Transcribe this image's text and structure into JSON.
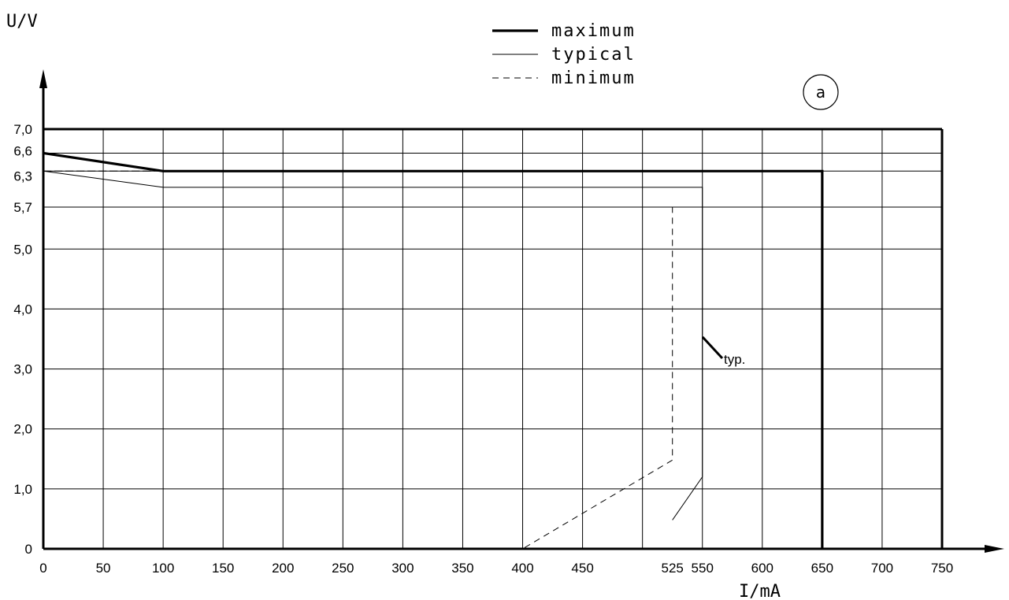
{
  "chart_data": {
    "type": "line",
    "xlabel": "I/mA",
    "ylabel": "U/V",
    "xlim": [
      0,
      750
    ],
    "ylim": [
      0,
      7.0
    ],
    "x_ticks": [
      0,
      50,
      100,
      150,
      200,
      250,
      300,
      350,
      400,
      450,
      525,
      550,
      600,
      650,
      700,
      750
    ],
    "x_tick_labels": [
      "0",
      "50",
      "100",
      "150",
      "200",
      "250",
      "300",
      "350",
      "400",
      "450",
      "525",
      "550",
      "600",
      "650",
      "700",
      "750"
    ],
    "y_ticks": [
      0,
      1.0,
      2.0,
      3.0,
      4.0,
      5.0,
      5.7,
      6.3,
      6.6,
      7.0
    ],
    "y_tick_labels": [
      "0",
      "1,0",
      "2,0",
      "3,0",
      "4,0",
      "5,0",
      "5,7",
      "6,3",
      "6,6",
      "7,0"
    ],
    "grid": true,
    "legend_position": "top-center",
    "series": [
      {
        "name": "maximum",
        "style": "thick",
        "points": [
          [
            0,
            6.6
          ],
          [
            100,
            6.3
          ],
          [
            650,
            6.3
          ],
          [
            650,
            0
          ]
        ]
      },
      {
        "name": "typical",
        "style": "thin",
        "points": [
          [
            0,
            6.3
          ],
          [
            100,
            6.03
          ],
          [
            550,
            6.03
          ],
          [
            550,
            1.2
          ],
          [
            525,
            0.48
          ]
        ]
      },
      {
        "name": "minimum",
        "style": "dashed",
        "points": [
          [
            0,
            6.3
          ],
          [
            100,
            6.3
          ],
          [
            0,
            6.3
          ],
          [
            0,
            5.7
          ],
          [
            525,
            5.7
          ],
          [
            525,
            1.48
          ],
          [
            400,
            0
          ]
        ]
      }
    ],
    "annotations": {
      "typ_label": "typ.",
      "circle_label": "a"
    }
  }
}
